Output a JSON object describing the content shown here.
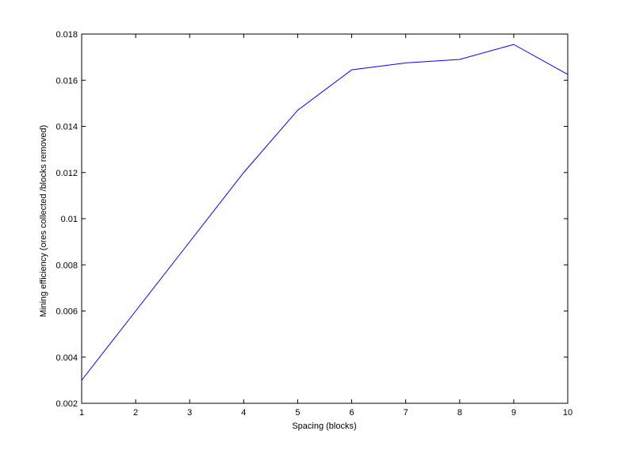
{
  "chart_data": {
    "type": "line",
    "title": "",
    "xlabel": "Spacing (blocks)",
    "ylabel": "Mining efficiency (ores collected /blocks removed)",
    "xlim": [
      1,
      10
    ],
    "ylim": [
      0.002,
      0.018
    ],
    "xticks": [
      "1",
      "2",
      "3",
      "4",
      "5",
      "6",
      "7",
      "8",
      "9",
      "10"
    ],
    "yticks": [
      "0.002",
      "0.004",
      "0.006",
      "0.008",
      "0.01",
      "0.012",
      "0.014",
      "0.016",
      "0.018"
    ],
    "grid": false,
    "line_color": "#0000ff",
    "series": [
      {
        "x": [
          1,
          2,
          3,
          4,
          5,
          6,
          7,
          8,
          9,
          10
        ],
        "y": [
          0.003,
          0.006,
          0.009,
          0.012,
          0.0147,
          0.01645,
          0.01675,
          0.0169,
          0.01755,
          0.01625
        ]
      }
    ]
  }
}
